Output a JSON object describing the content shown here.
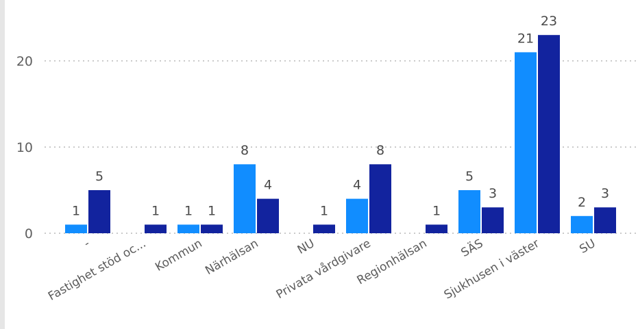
{
  "chart_data": {
    "type": "bar",
    "categories": [
      "-",
      "Fastighet stöd oc...",
      "Kommun",
      "Närhälsan",
      "NU",
      "Privata vårdgivare",
      "Regionhälsan",
      "SÄS",
      "Sjukhusen i väster",
      "SU"
    ],
    "series": [
      {
        "values": [
          1,
          0,
          1,
          8,
          0,
          4,
          0,
          5,
          21,
          2
        ],
        "color": "#118dff"
      },
      {
        "values": [
          5,
          1,
          1,
          4,
          1,
          8,
          1,
          3,
          23,
          3
        ],
        "color": "#12239e"
      }
    ],
    "yticks": [
      "0",
      "10",
      "20"
    ],
    "ylim": [
      0,
      25
    ],
    "grid": true,
    "legend": "none"
  },
  "colors": {
    "light_bar": "#118dff",
    "dark_bar": "#12239e"
  }
}
